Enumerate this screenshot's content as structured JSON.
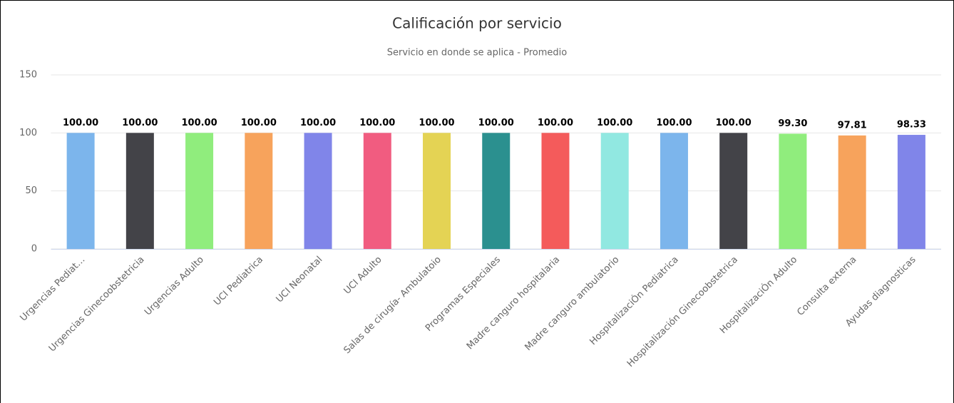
{
  "chart_data": {
    "type": "bar",
    "title": "Calificación por servicio",
    "subtitle": "Servicio en donde se aplica - Promedio",
    "categories": [
      "Urgencias Pediat…",
      "Urgencias Ginecoobstetricia",
      "Urgencias Adulto",
      "UCI Pediatrica",
      "UCI Neonatal",
      "UCI Adulto",
      "Salas de cirugía- Ambulatoio",
      "Programas Especiales",
      "Madre canguro hospitalaria",
      "Madre canguro ambulatorio",
      "HospitalizaciÓn Pediatrica",
      "Hospitalización Ginecoobstetrica",
      "HospitalizaciÓn Adulto",
      "Consulta externa",
      "Ayudas diagnosticas"
    ],
    "values": [
      100,
      100,
      100,
      100,
      100,
      100,
      100,
      100,
      100,
      100,
      100,
      100,
      99.3,
      97.81,
      98.33
    ],
    "value_labels": [
      "100.00",
      "100.00",
      "100.00",
      "100.00",
      "100.00",
      "100.00",
      "100.00",
      "100.00",
      "100.00",
      "100.00",
      "100.00",
      "100.00",
      "99.30",
      "97.81",
      "98.33"
    ],
    "colors": [
      "#7cb5ec",
      "#434348",
      "#90ed7d",
      "#f7a35c",
      "#8085e9",
      "#f15c80",
      "#e4d354",
      "#2b908f",
      "#f45b5b",
      "#91e8e1",
      "#7cb5ec",
      "#434348",
      "#90ed7d",
      "#f7a35c",
      "#8085e9"
    ],
    "ylim": [
      0,
      150
    ],
    "yticks": [
      0,
      50,
      100,
      150
    ],
    "grid": true
  }
}
